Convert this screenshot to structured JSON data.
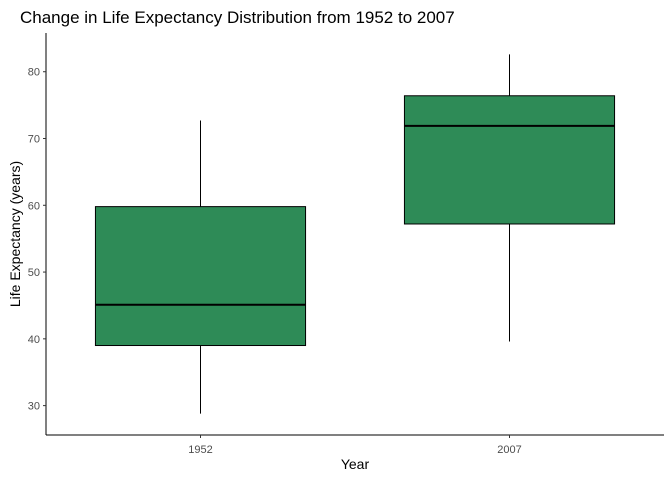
{
  "chart_data": {
    "type": "boxplot",
    "title": "Change in Life Expectancy Distribution from 1952 to 2007",
    "xlabel": "Year",
    "ylabel": "Life Expectancy (years)",
    "categories": [
      "1952",
      "2007"
    ],
    "boxes": [
      {
        "category": "1952",
        "min": 28.8,
        "q1": 39.0,
        "median": 45.1,
        "q3": 59.8,
        "max": 72.7
      },
      {
        "category": "2007",
        "min": 39.6,
        "q1": 57.2,
        "median": 71.9,
        "q3": 76.4,
        "max": 82.6
      }
    ],
    "yticks": [
      30,
      40,
      50,
      60,
      70,
      80
    ],
    "ylim": [
      25.6,
      85.8
    ],
    "grid": false,
    "legend": "none",
    "fill_color": "#2E8B57"
  }
}
